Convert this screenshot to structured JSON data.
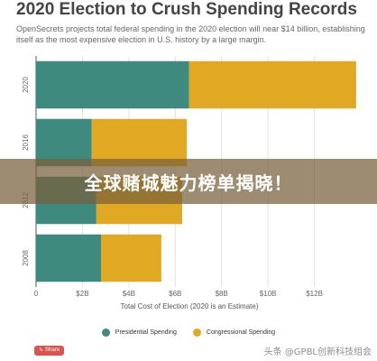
{
  "header": {
    "title": "2020 Election to Crush Spending Records",
    "subtitle": "OpenSecrets projects total federal spending in the 2020 election will near $14 billion, establishing itself as the most expensive election in U.S. history by a large margin."
  },
  "banner": {
    "text": "全球赌城魅力榜单揭晓！"
  },
  "share": {
    "label": "Share"
  },
  "watermark": {
    "text": "头条 @GPBL创新科技组会"
  },
  "colors": {
    "presidential": "#3f8a7f",
    "congressional": "#e0a823",
    "grid": "#e2e2e2",
    "axis": "#555555",
    "banner": "#78603c"
  },
  "chart_data": {
    "type": "bar",
    "orientation": "horizontal",
    "stacked": true,
    "categories": [
      "2020",
      "2016",
      "2012",
      "2008"
    ],
    "series": [
      {
        "name": "Presidential Spending",
        "values": [
          6.6,
          2.4,
          2.6,
          2.8
        ]
      },
      {
        "name": "Congressional Spending",
        "values": [
          7.2,
          4.1,
          3.7,
          2.6
        ]
      }
    ],
    "xlabel": "Total Cost of Election (2020 is an Estimate)",
    "xlim": [
      0,
      14
    ],
    "xticks": [
      0,
      2,
      4,
      6,
      8,
      10,
      12
    ],
    "xtick_labels": [
      "0",
      "$2B",
      "$4B",
      "$6B",
      "$8B",
      "$10B",
      "$12B"
    ],
    "grid": true,
    "legend": "bottom"
  }
}
